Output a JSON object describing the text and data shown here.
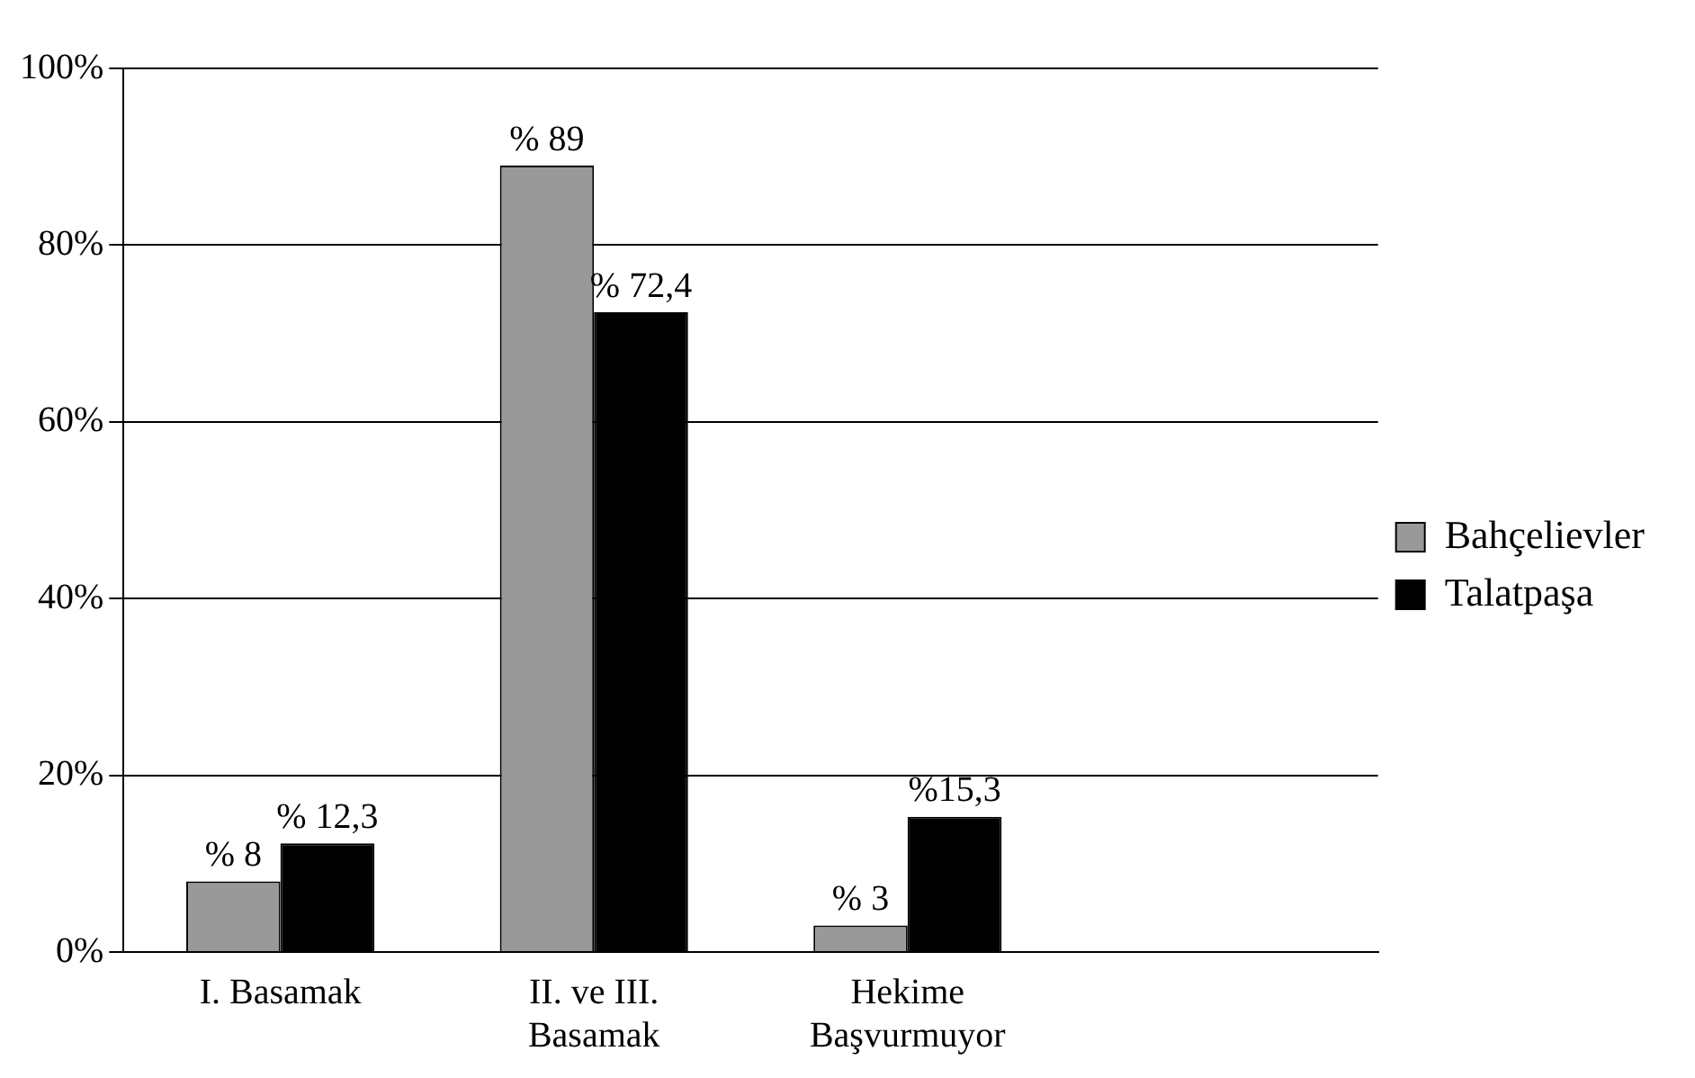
{
  "chart_data": {
    "type": "bar",
    "categories": [
      "I. Basamak",
      "II. ve III. Basamak",
      "Hekime Başvurmuyor",
      null
    ],
    "series": [
      {
        "name": "Bahçelievler",
        "color": "#999999",
        "values": [
          8,
          89,
          3,
          null
        ],
        "value_labels": [
          "% 8",
          "% 89",
          "% 3",
          null
        ]
      },
      {
        "name": "Talatpaşa",
        "color": "#000000",
        "values": [
          12.3,
          72.4,
          15.3,
          null
        ],
        "value_labels": [
          "% 12,3",
          "% 72,4",
          "%15,3",
          null
        ]
      }
    ],
    "ylim": [
      0,
      100
    ],
    "yticks": [
      {
        "value": 0,
        "label": "0%"
      },
      {
        "value": 20,
        "label": "20%"
      },
      {
        "value": 40,
        "label": "40%"
      },
      {
        "value": 60,
        "label": "60%"
      },
      {
        "value": 80,
        "label": "80%"
      },
      {
        "value": 100,
        "label": "100%"
      }
    ],
    "grid": "y",
    "legend": "right"
  }
}
